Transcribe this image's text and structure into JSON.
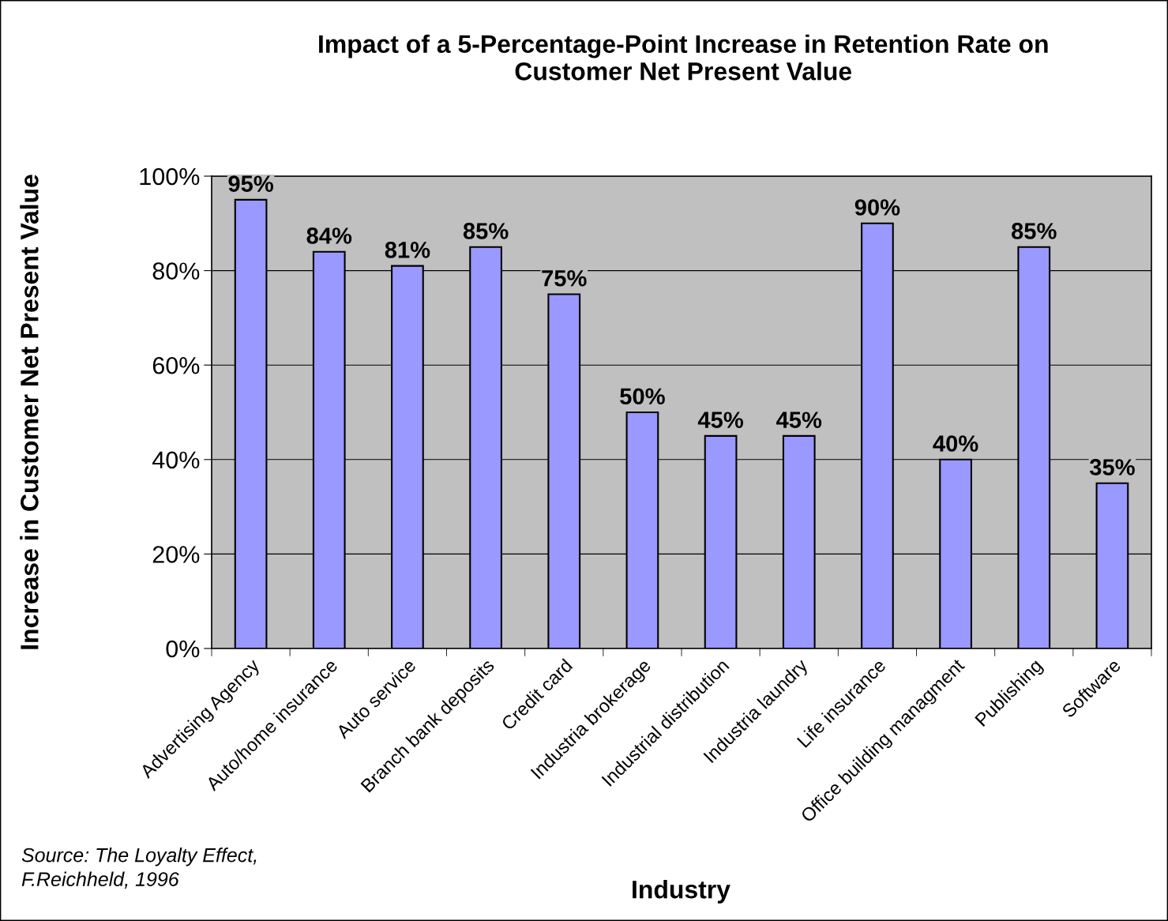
{
  "chart_data": {
    "type": "bar",
    "title": "Impact of a 5-Percentage-Point Increase in Retention Rate on\nCustomer Net Present Value",
    "xlabel": "Industry",
    "ylabel": "Increase in Customer Net Present Value",
    "categories": [
      "Advertising Agency",
      "Auto/home insurance",
      "Auto service",
      "Branch bank deposits",
      "Credit card",
      "Industria brokerage",
      "Industrial distribution",
      "Industria laundry",
      "Life insurance",
      "Office building managment",
      "Publishing",
      "Software"
    ],
    "values": [
      95,
      84,
      81,
      85,
      75,
      50,
      45,
      45,
      90,
      40,
      85,
      35
    ],
    "value_labels": [
      "95%",
      "84%",
      "81%",
      "85%",
      "75%",
      "50%",
      "45%",
      "45%",
      "90%",
      "40%",
      "85%",
      "35%"
    ],
    "color": "#9999ff",
    "ylim": [
      0,
      100
    ],
    "yticks": [
      {
        "value": 0,
        "label": "0%"
      },
      {
        "value": 20,
        "label": "20%"
      },
      {
        "value": 40,
        "label": "40%"
      },
      {
        "value": 60,
        "label": "60%"
      },
      {
        "value": 80,
        "label": "80%"
      },
      {
        "value": 100,
        "label": "100%"
      }
    ],
    "grid": "y",
    "legend": false,
    "annotations": [
      "Source: The Loyalty Effect,\nF.Reichheld, 1996"
    ]
  }
}
